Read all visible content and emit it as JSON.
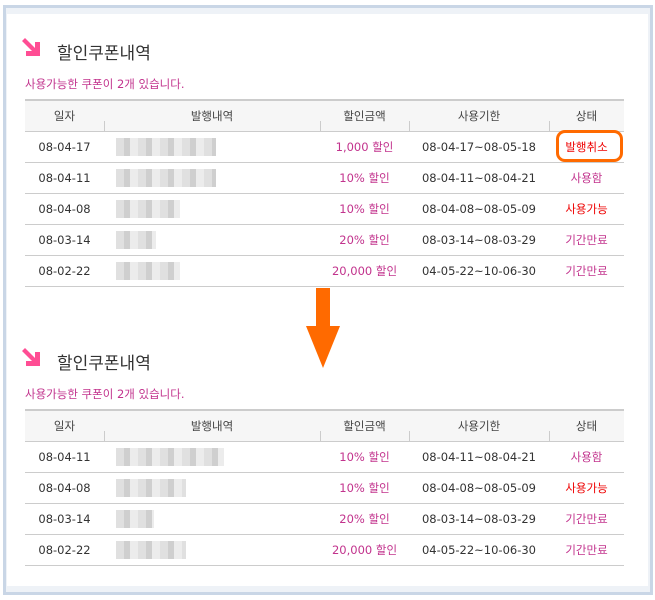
{
  "colors": {
    "accent": "#c2338d",
    "title_arrow": "#ff4d94",
    "highlight": "#ff6a00",
    "status_red": "#e00000"
  },
  "panels": [
    {
      "title": "할인쿠폰내역",
      "subtitle": "사용가능한 쿠폰이 2개 있습니다.",
      "headers": [
        "일자",
        "발행내역",
        "할인금액",
        "사용기한",
        "상태"
      ],
      "rows": [
        {
          "date": "08-04-17",
          "amount": "1,000 할인",
          "period": "08-04-17~08-05-18",
          "status": "발행취소",
          "kind": "cancel",
          "blur": 100
        },
        {
          "date": "08-04-11",
          "amount": "10% 할인",
          "period": "08-04-11~08-04-21",
          "status": "사용함",
          "kind": "used",
          "blur": 100
        },
        {
          "date": "08-04-08",
          "amount": "10% 할인",
          "period": "08-04-08~08-05-09",
          "status": "사용가능",
          "kind": "avail",
          "blur": 64
        },
        {
          "date": "08-03-14",
          "amount": "20% 할인",
          "period": "08-03-14~08-03-29",
          "status": "기간만료",
          "kind": "exp",
          "blur": 40
        },
        {
          "date": "08-02-22",
          "amount": "20,000 할인",
          "period": "04-05-22~10-06-30",
          "status": "기간만료",
          "kind": "exp",
          "blur": 64
        }
      ]
    },
    {
      "title": "할인쿠폰내역",
      "subtitle": "사용가능한 쿠폰이 2개 있습니다.",
      "headers": [
        "일자",
        "발행내역",
        "할인금액",
        "사용기한",
        "상태"
      ],
      "rows": [
        {
          "date": "08-04-11",
          "amount": "10% 할인",
          "period": "08-04-11~08-04-21",
          "status": "사용함",
          "kind": "used",
          "blur": 108
        },
        {
          "date": "08-04-08",
          "amount": "10% 할인",
          "period": "08-04-08~08-05-09",
          "status": "사용가능",
          "kind": "avail",
          "blur": 70
        },
        {
          "date": "08-03-14",
          "amount": "20% 할인",
          "period": "08-03-14~08-03-29",
          "status": "기간만료",
          "kind": "exp",
          "blur": 38
        },
        {
          "date": "08-02-22",
          "amount": "20,000 할인",
          "period": "04-05-22~10-06-30",
          "status": "기간만료",
          "kind": "exp",
          "blur": 70
        }
      ]
    }
  ]
}
